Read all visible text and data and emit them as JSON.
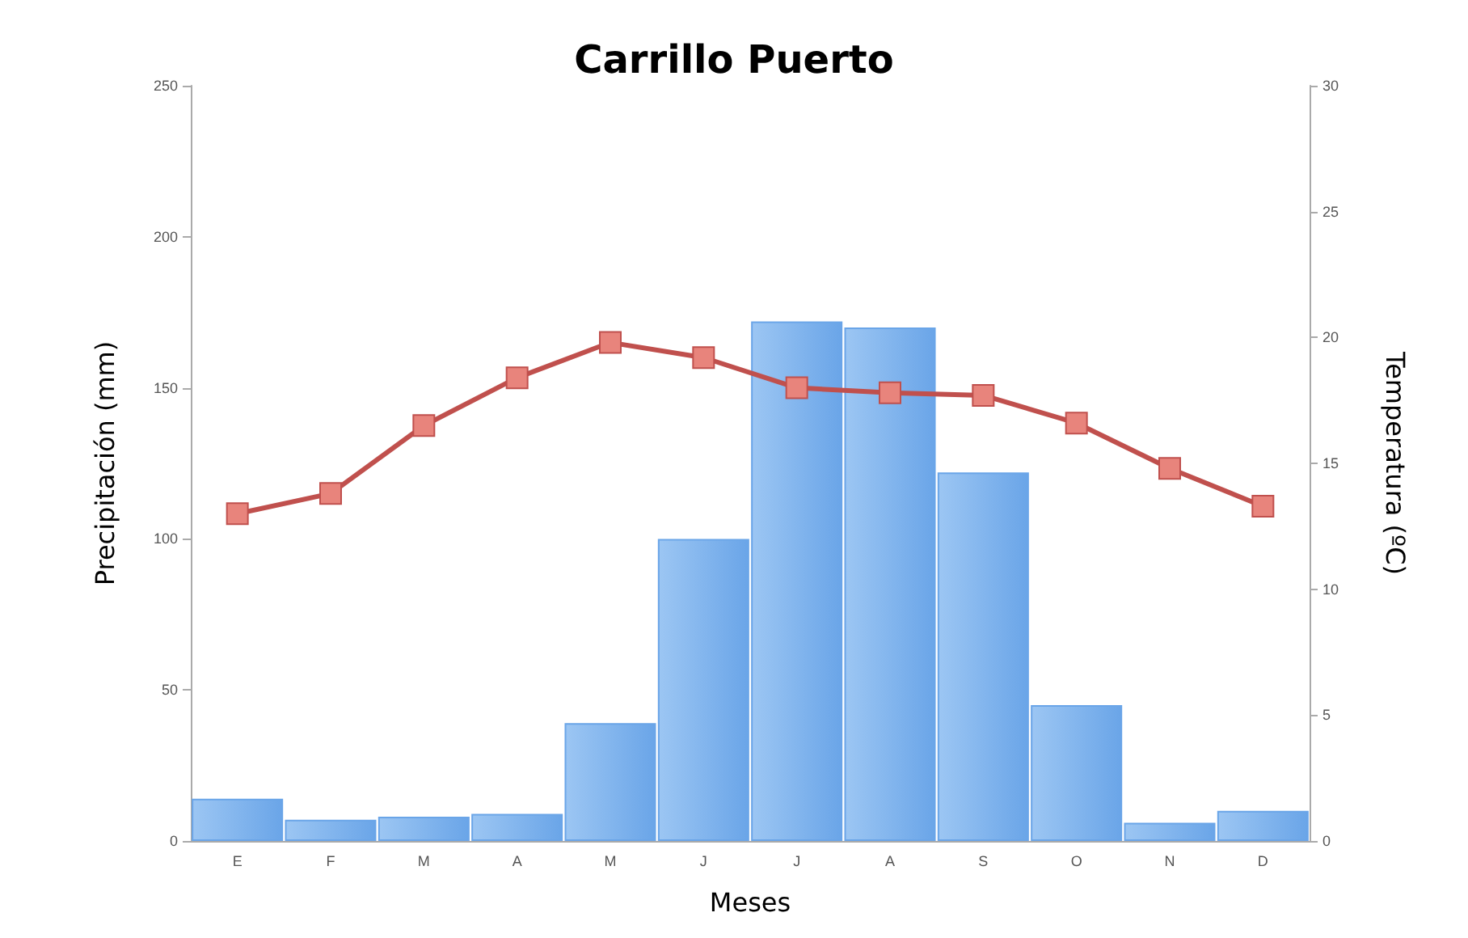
{
  "chart_data": {
    "type": "bar",
    "title": "Carrillo Puerto",
    "xlabel": "Meses",
    "ylabel": "Precipitación (mm)",
    "y2label": "Temperatura (ºC)",
    "categories": [
      "E",
      "F",
      "M",
      "A",
      "M",
      "J",
      "J",
      "A",
      "S",
      "O",
      "N",
      "D"
    ],
    "series": [
      {
        "color": "#6aa5e8",
        "values": [
          14,
          7,
          8,
          9,
          39,
          100,
          172,
          170,
          122,
          45,
          6,
          10
        ]
      },
      {
        "type": "line",
        "axis": "y2",
        "color": "#c0504d",
        "marker": "square",
        "values": [
          13.0,
          13.8,
          16.5,
          18.4,
          19.8,
          19.2,
          18.0,
          17.8,
          17.7,
          16.6,
          14.8,
          13.3
        ]
      }
    ],
    "ylim": [
      0,
      250
    ],
    "yticks": [
      0,
      50,
      100,
      150,
      200,
      250
    ],
    "y2lim": [
      0,
      30
    ],
    "y2ticks": [
      0,
      5,
      10,
      15,
      20,
      25,
      30
    ],
    "grid": false
  }
}
